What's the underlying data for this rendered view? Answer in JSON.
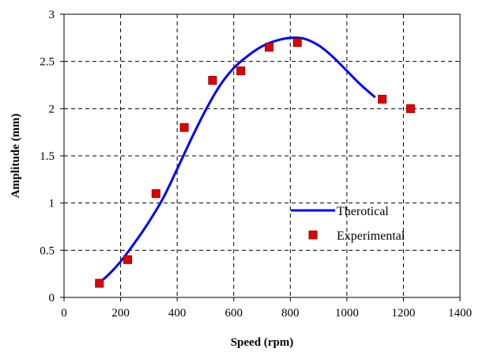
{
  "chart_data": {
    "type": "scatter",
    "xlabel": "Speed (rpm)",
    "ylabel": "Amplitude (mm)",
    "xlim": [
      0,
      1400
    ],
    "ylim": [
      0,
      3
    ],
    "xticks": [
      0,
      200,
      400,
      600,
      800,
      1000,
      1200,
      1400
    ],
    "yticks": [
      0,
      0.5,
      1,
      1.5,
      2,
      2.5,
      3
    ],
    "xtick_labels": [
      "0",
      "200",
      "400",
      "600",
      "800",
      "1000",
      "1200",
      "1400"
    ],
    "ytick_labels": [
      "0",
      "0.5",
      "1",
      "1.5",
      "2",
      "2.5",
      "3"
    ],
    "grid": true,
    "grid_style": "dashed",
    "legend_position": "bottom-right",
    "series": [
      {
        "name": "Therotical",
        "kind": "line",
        "color": "#0000ff",
        "x": [
          120,
          150,
          200,
          250,
          300,
          350,
          400,
          450,
          500,
          550,
          600,
          650,
          700,
          750,
          800,
          850,
          900,
          950,
          1000,
          1050,
          1100
        ],
        "y": [
          0.15,
          0.22,
          0.38,
          0.58,
          0.8,
          1.05,
          1.36,
          1.68,
          1.98,
          2.24,
          2.43,
          2.56,
          2.66,
          2.72,
          2.75,
          2.74,
          2.67,
          2.55,
          2.4,
          2.25,
          2.12
        ]
      },
      {
        "name": "Experimental",
        "kind": "scatter",
        "marker": "square",
        "color": "#e00000",
        "x": [
          125,
          225,
          325,
          425,
          525,
          625,
          725,
          825,
          1125,
          1225
        ],
        "y": [
          0.15,
          0.4,
          1.1,
          1.8,
          2.3,
          2.4,
          2.65,
          2.7,
          2.1,
          2.0
        ]
      }
    ]
  }
}
